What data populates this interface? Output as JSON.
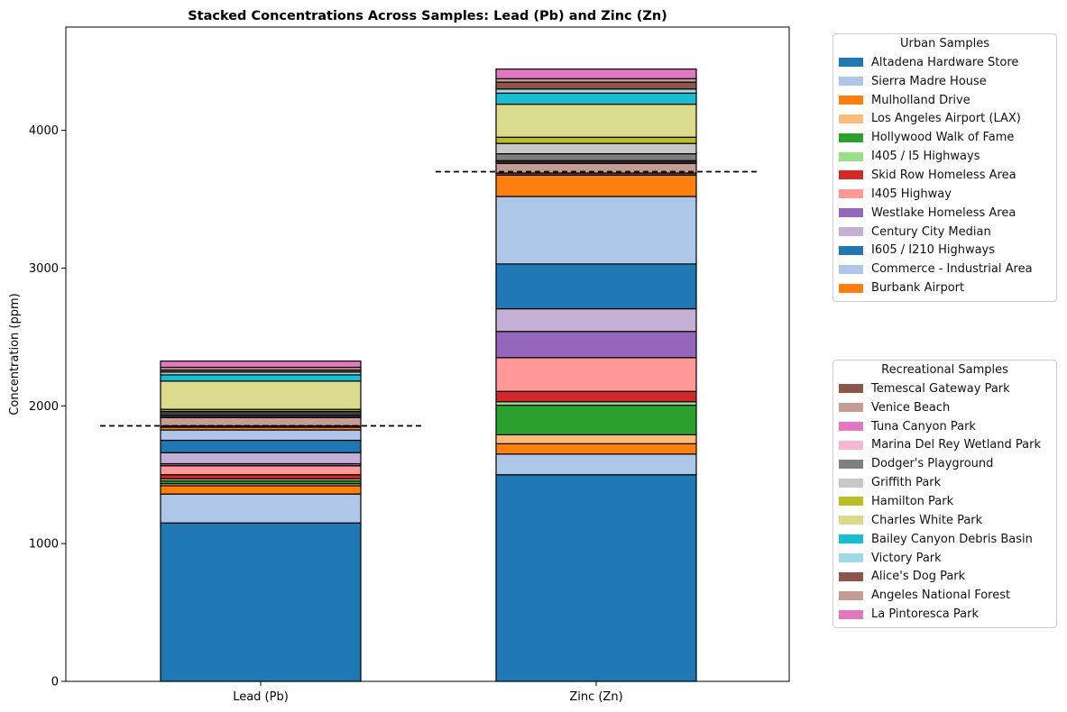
{
  "chart_data": {
    "type": "bar",
    "stacked": true,
    "title": "Stacked Concentrations Across Samples: Lead (Pb) and Zinc (Zn)",
    "xlabel": "",
    "ylabel": "Concentration (ppm)",
    "ylim": [
      0,
      4750
    ],
    "yticks": [
      0,
      1000,
      2000,
      3000,
      4000
    ],
    "categories": [
      "Lead (Pb)",
      "Zinc (Zn)"
    ],
    "grid": false,
    "reference_lines": [
      {
        "category": "Lead (Pb)",
        "value": 1855,
        "style": "dashed",
        "color": "#000000"
      },
      {
        "category": "Zinc (Zn)",
        "value": 3700,
        "style": "dashed",
        "color": "#000000"
      }
    ],
    "series": [
      {
        "name": "Altadena Hardware Store",
        "group": "urban",
        "color": "#1f77b4",
        "values": [
          1150,
          1500
        ]
      },
      {
        "name": "Sierra Madre House",
        "group": "urban",
        "color": "#aec7e8",
        "values": [
          210,
          150
        ]
      },
      {
        "name": "Mulholland Drive",
        "group": "urban",
        "color": "#ff7f0e",
        "values": [
          60,
          75
        ]
      },
      {
        "name": "Los Angeles Airport (LAX)",
        "group": "urban",
        "color": "#ffbb78",
        "values": [
          15,
          65
        ]
      },
      {
        "name": "Hollywood Walk of Fame",
        "group": "urban",
        "color": "#2ca02c",
        "values": [
          20,
          215
        ]
      },
      {
        "name": "I405 / I5 Highways",
        "group": "urban",
        "color": "#98df8a",
        "values": [
          15,
          25
        ]
      },
      {
        "name": "Skid Row Homeless Area",
        "group": "urban",
        "color": "#d62728",
        "values": [
          30,
          75
        ]
      },
      {
        "name": "I405 Highway",
        "group": "urban",
        "color": "#ff9896",
        "values": [
          65,
          245
        ]
      },
      {
        "name": "Westlake Homeless Area",
        "group": "urban",
        "color": "#9467bd",
        "values": [
          15,
          190
        ]
      },
      {
        "name": "Century City Median",
        "group": "urban",
        "color": "#c5b0d5",
        "values": [
          80,
          165
        ]
      },
      {
        "name": "I605 / I210 Highways",
        "group": "urban",
        "color": "#1f77b4",
        "values": [
          90,
          325
        ]
      },
      {
        "name": "Commerce - Industrial Area",
        "group": "urban",
        "color": "#aec7e8",
        "values": [
          75,
          490
        ]
      },
      {
        "name": "Burbank Airport",
        "group": "urban",
        "color": "#ff7f0e",
        "values": [
          20,
          155
        ]
      },
      {
        "name": "Temescal Gateway Park",
        "group": "recreational",
        "color": "#8c564b",
        "values": [
          10,
          15
        ]
      },
      {
        "name": "Venice Beach",
        "group": "recreational",
        "color": "#c49c94",
        "values": [
          60,
          70
        ]
      },
      {
        "name": "Tuna Canyon Park",
        "group": "recreational",
        "color": "#e377c2",
        "values": [
          10,
          10
        ]
      },
      {
        "name": "Marina Del Rey Wetland Park",
        "group": "recreational",
        "color": "#f7b6d2",
        "values": [
          10,
          10
        ]
      },
      {
        "name": "Dodger's Playground",
        "group": "recreational",
        "color": "#7f7f7f",
        "values": [
          15,
          50
        ]
      },
      {
        "name": "Griffith Park",
        "group": "recreational",
        "color": "#c7c7c7",
        "values": [
          10,
          75
        ]
      },
      {
        "name": "Hamilton Park",
        "group": "recreational",
        "color": "#bcbd22",
        "values": [
          15,
          45
        ]
      },
      {
        "name": "Charles White Park",
        "group": "recreational",
        "color": "#dbdb8d",
        "values": [
          205,
          240
        ]
      },
      {
        "name": "Bailey Canyon Debris Basin",
        "group": "recreational",
        "color": "#17becf",
        "values": [
          45,
          80
        ]
      },
      {
        "name": "Victory Park",
        "group": "recreational",
        "color": "#9edae5",
        "values": [
          20,
          30
        ]
      },
      {
        "name": "Alice's Dog Park",
        "group": "recreational",
        "color": "#8c564b",
        "values": [
          15,
          50
        ]
      },
      {
        "name": "Angeles National Forest",
        "group": "recreational",
        "color": "#c49c94",
        "values": [
          20,
          25
        ]
      },
      {
        "name": "La Pintoresca Park",
        "group": "recreational",
        "color": "#e377c2",
        "values": [
          45,
          70
        ]
      }
    ],
    "legends": [
      {
        "title": "Urban Samples",
        "group": "urban",
        "placement": "right-upper"
      },
      {
        "title": "Recreational Samples",
        "group": "recreational",
        "placement": "right-lower"
      }
    ]
  }
}
